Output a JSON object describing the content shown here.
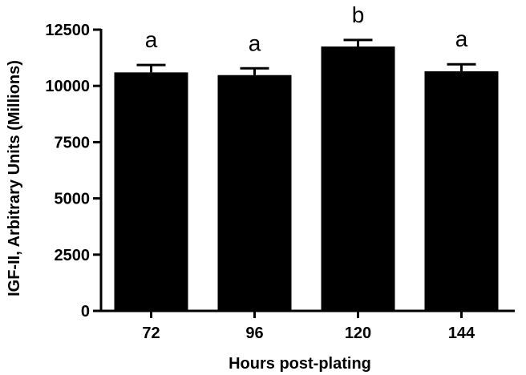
{
  "chart_data": {
    "type": "bar",
    "categories": [
      "72",
      "96",
      "120",
      "144"
    ],
    "values": [
      10600,
      10480,
      11750,
      10650
    ],
    "errors": [
      330,
      300,
      290,
      310
    ],
    "significance": [
      "a",
      "a",
      "b",
      "a"
    ],
    "title": "",
    "xlabel": "Hours post-plating",
    "ylabel": "IGF-II, Arbitrary Units (Millions)",
    "ylim": [
      0,
      12500
    ],
    "yticks": [
      0,
      2500,
      5000,
      7500,
      10000,
      12500
    ],
    "ytick_labels": [
      "0",
      "2500",
      "5000",
      "7500",
      "10000",
      "12500"
    ],
    "grid": false,
    "bar_color": "#000000"
  }
}
